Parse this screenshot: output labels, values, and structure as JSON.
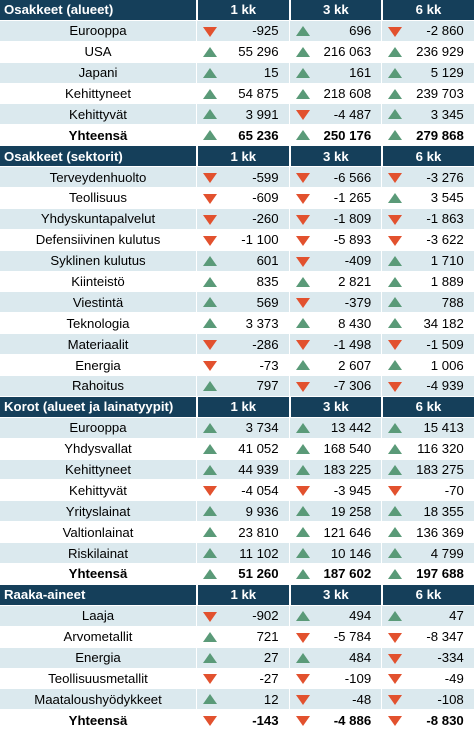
{
  "colors": {
    "header_bg": "#153f5a",
    "row_alt_bg": "#dbe9ee",
    "up": "#5a9a78",
    "down": "#e2512e"
  },
  "sections": [
    {
      "title": "Osakkeet (alueet)",
      "columns": [
        "1 kk",
        "3 kk",
        "6 kk"
      ],
      "rows": [
        {
          "label": "Eurooppa",
          "values": [
            "-925",
            "696",
            "-2 860"
          ],
          "trend": [
            "down",
            "up",
            "down"
          ],
          "bold": false
        },
        {
          "label": "USA",
          "values": [
            "55 296",
            "216 063",
            "236 929"
          ],
          "trend": [
            "up",
            "up",
            "up"
          ],
          "bold": false
        },
        {
          "label": "Japani",
          "values": [
            "15",
            "161",
            "5 129"
          ],
          "trend": [
            "up",
            "up",
            "up"
          ],
          "bold": false
        },
        {
          "label": "Kehittyneet",
          "values": [
            "54 875",
            "218 608",
            "239 703"
          ],
          "trend": [
            "up",
            "up",
            "up"
          ],
          "bold": false
        },
        {
          "label": "Kehittyvät",
          "values": [
            "3 991",
            "-4 487",
            "3 345"
          ],
          "trend": [
            "up",
            "down",
            "up"
          ],
          "bold": false
        },
        {
          "label": "Yhteensä",
          "values": [
            "65 236",
            "250 176",
            "279 868"
          ],
          "trend": [
            "up",
            "up",
            "up"
          ],
          "bold": true
        }
      ]
    },
    {
      "title": "Osakkeet (sektorit)",
      "columns": [
        "1 kk",
        "3 kk",
        "6 kk"
      ],
      "rows": [
        {
          "label": "Terveydenhuolto",
          "values": [
            "-599",
            "-6 566",
            "-3 276"
          ],
          "trend": [
            "down",
            "down",
            "down"
          ],
          "bold": false
        },
        {
          "label": "Teollisuus",
          "values": [
            "-609",
            "-1 265",
            "3 545"
          ],
          "trend": [
            "down",
            "down",
            "up"
          ],
          "bold": false
        },
        {
          "label": "Yhdyskuntapalvelut",
          "values": [
            "-260",
            "-1 809",
            "-1 863"
          ],
          "trend": [
            "down",
            "down",
            "down"
          ],
          "bold": false
        },
        {
          "label": "Defensiivinen kulutus",
          "values": [
            "-1 100",
            "-5 893",
            "-3 622"
          ],
          "trend": [
            "down",
            "down",
            "down"
          ],
          "bold": false
        },
        {
          "label": "Syklinen kulutus",
          "values": [
            "601",
            "-409",
            "1 710"
          ],
          "trend": [
            "up",
            "down",
            "up"
          ],
          "bold": false
        },
        {
          "label": "Kiinteistö",
          "values": [
            "835",
            "2 821",
            "1 889"
          ],
          "trend": [
            "up",
            "up",
            "up"
          ],
          "bold": false
        },
        {
          "label": "Viestintä",
          "values": [
            "569",
            "-379",
            "788"
          ],
          "trend": [
            "up",
            "down",
            "up"
          ],
          "bold": false
        },
        {
          "label": "Teknologia",
          "values": [
            "3 373",
            "8 430",
            "34 182"
          ],
          "trend": [
            "up",
            "up",
            "up"
          ],
          "bold": false
        },
        {
          "label": "Materiaalit",
          "values": [
            "-286",
            "-1 498",
            "-1 509"
          ],
          "trend": [
            "down",
            "down",
            "down"
          ],
          "bold": false
        },
        {
          "label": "Energia",
          "values": [
            "-73",
            "2 607",
            "1 006"
          ],
          "trend": [
            "down",
            "up",
            "up"
          ],
          "bold": false
        },
        {
          "label": "Rahoitus",
          "values": [
            "797",
            "-7 306",
            "-4 939"
          ],
          "trend": [
            "up",
            "down",
            "down"
          ],
          "bold": false
        }
      ]
    },
    {
      "title": "Korot (alueet ja lainatyypit)",
      "columns": [
        "1 kk",
        "3 kk",
        "6 kk"
      ],
      "rows": [
        {
          "label": "Eurooppa",
          "values": [
            "3 734",
            "13 442",
            "15 413"
          ],
          "trend": [
            "up",
            "up",
            "up"
          ],
          "bold": false
        },
        {
          "label": "Yhdysvallat",
          "values": [
            "41 052",
            "168 540",
            "116 320"
          ],
          "trend": [
            "up",
            "up",
            "up"
          ],
          "bold": false
        },
        {
          "label": "Kehittyneet",
          "values": [
            "44 939",
            "183 225",
            "183 275"
          ],
          "trend": [
            "up",
            "up",
            "up"
          ],
          "bold": false
        },
        {
          "label": "Kehittyvät",
          "values": [
            "-4 054",
            "-3 945",
            "-70"
          ],
          "trend": [
            "down",
            "down",
            "down"
          ],
          "bold": false
        },
        {
          "label": "Yrityslainat",
          "values": [
            "9 936",
            "19 258",
            "18 355"
          ],
          "trend": [
            "up",
            "up",
            "up"
          ],
          "bold": false
        },
        {
          "label": "Valtionlainat",
          "values": [
            "23 810",
            "121 646",
            "136 369"
          ],
          "trend": [
            "up",
            "up",
            "up"
          ],
          "bold": false
        },
        {
          "label": "Riskilainat",
          "values": [
            "11 102",
            "10 146",
            "4 799"
          ],
          "trend": [
            "up",
            "up",
            "up"
          ],
          "bold": false
        },
        {
          "label": "Yhteensä",
          "values": [
            "51 260",
            "187 602",
            "197 688"
          ],
          "trend": [
            "up",
            "up",
            "up"
          ],
          "bold": true
        }
      ]
    },
    {
      "title": "Raaka-aineet",
      "columns": [
        "1 kk",
        "3 kk",
        "6 kk"
      ],
      "rows": [
        {
          "label": "Laaja",
          "values": [
            "-902",
            "494",
            "47"
          ],
          "trend": [
            "down",
            "up",
            "up"
          ],
          "bold": false
        },
        {
          "label": "Arvometallit",
          "values": [
            "721",
            "-5 784",
            "-8 347"
          ],
          "trend": [
            "up",
            "down",
            "down"
          ],
          "bold": false
        },
        {
          "label": "Energia",
          "values": [
            "27",
            "484",
            "-334"
          ],
          "trend": [
            "up",
            "up",
            "down"
          ],
          "bold": false
        },
        {
          "label": "Teollisuusmetallit",
          "values": [
            "-27",
            "-109",
            "-49"
          ],
          "trend": [
            "down",
            "down",
            "down"
          ],
          "bold": false
        },
        {
          "label": "Maataloushyödykkeet",
          "values": [
            "12",
            "-48",
            "-108"
          ],
          "trend": [
            "up",
            "down",
            "down"
          ],
          "bold": false
        },
        {
          "label": "Yhteensä",
          "values": [
            "-143",
            "-4 886",
            "-8 830"
          ],
          "trend": [
            "down",
            "down",
            "down"
          ],
          "bold": true
        }
      ]
    }
  ]
}
